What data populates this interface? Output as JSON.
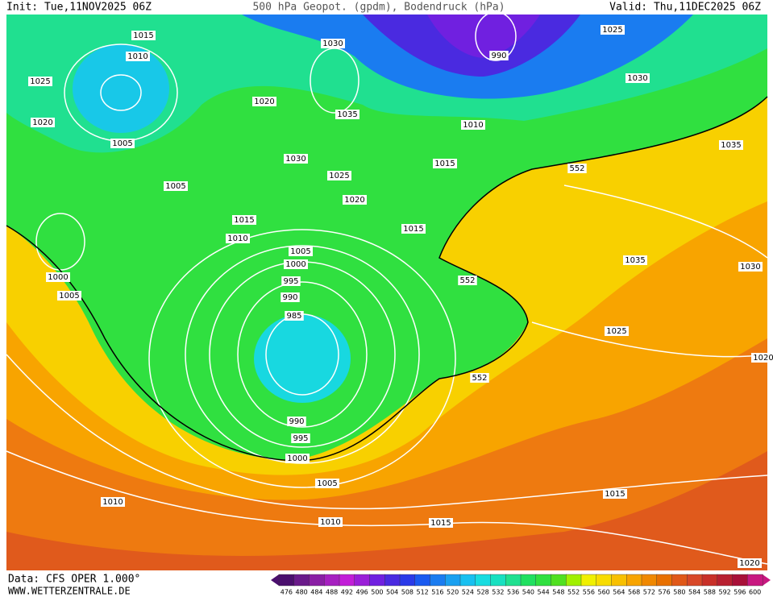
{
  "header": {
    "init": "Init: Tue,11NOV2025 06Z",
    "title": "500 hPa Geopot. (gpdm), Bodendruck (hPa)",
    "valid": "Valid: Thu,11DEC2025 06Z"
  },
  "isobar_labels": [
    1015,
    1010,
    1025,
    1020,
    1005,
    1005,
    1030,
    1020,
    1035,
    1030,
    1025,
    1020,
    1015,
    1010,
    1015,
    1015,
    1010,
    990,
    1025,
    1030,
    1035,
    552,
    1035,
    1030,
    552,
    1005,
    1000,
    995,
    990,
    985,
    1000,
    1005,
    1025,
    1020,
    552,
    990,
    995,
    1000,
    1005,
    1010,
    1015,
    1010,
    1015,
    1020
  ],
  "legend": {
    "labels": [
      476,
      480,
      484,
      488,
      492,
      496,
      500,
      504,
      508,
      512,
      516,
      520,
      524,
      528,
      532,
      536,
      540,
      544,
      548,
      552,
      556,
      560,
      564,
      568,
      572,
      576,
      580,
      584,
      588,
      592,
      596,
      600
    ],
    "colors": [
      "#4b0f6e",
      "#6a1a8a",
      "#8a1fa5",
      "#a620c0",
      "#c21ed8",
      "#9a1fd8",
      "#7020e0",
      "#4a2ae0",
      "#2a3ae8",
      "#1a5af0",
      "#1a7cf0",
      "#1aa0f0",
      "#18c0f0",
      "#18dce0",
      "#18e0c0",
      "#20e090",
      "#20e060",
      "#30e040",
      "#50e020",
      "#a0f000",
      "#f0f000",
      "#f8dc00",
      "#f8c000",
      "#f8a400",
      "#f08800",
      "#e87000",
      "#e05818",
      "#d84828",
      "#c83028",
      "#b82030",
      "#a81038",
      "#c81880"
    ]
  },
  "footer": {
    "data": "Data: CFS OPER 1.000°",
    "site": "WWW.WETTERZENTRALE.DE"
  }
}
